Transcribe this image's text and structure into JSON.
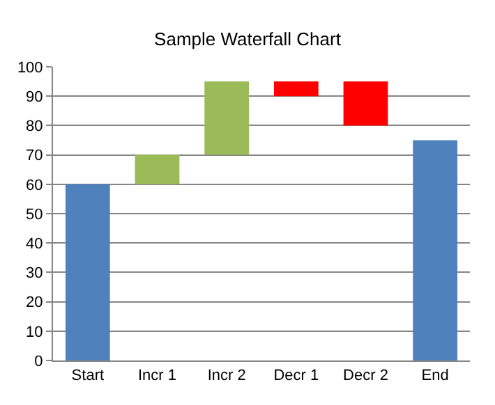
{
  "chart_data": {
    "type": "bar",
    "title": "Sample Waterfall Chart",
    "categories": [
      "Start",
      "Incr 1",
      "Incr 2",
      "Decr 1",
      "Decr 2",
      "End"
    ],
    "values": [
      60,
      10,
      25,
      5,
      15,
      75
    ],
    "base": [
      0,
      60,
      70,
      90,
      80,
      0
    ],
    "colors": [
      "#4f81bd",
      "#9bbb59",
      "#9bbb59",
      "#ff0000",
      "#ff0000",
      "#4f81bd"
    ],
    "ylim": [
      0,
      100
    ],
    "yticks": [
      0,
      10,
      20,
      30,
      40,
      50,
      60,
      70,
      80,
      90,
      100
    ],
    "grid": "y"
  }
}
